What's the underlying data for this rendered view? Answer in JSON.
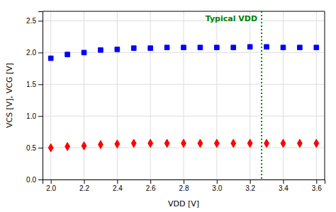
{
  "chart_data": {
    "type": "scatter",
    "xlabel": "VDD [V]",
    "ylabel": "VCS [V], VCG [V]",
    "x": [
      2.0,
      2.1,
      2.2,
      2.3,
      2.4,
      2.5,
      2.6,
      2.7,
      2.8,
      2.9,
      3.0,
      3.1,
      3.2,
      3.3,
      3.4,
      3.5,
      3.6
    ],
    "series": [
      {
        "color": "#0000FF",
        "marker": "square",
        "values": [
          1.91,
          1.97,
          2.0,
          2.04,
          2.05,
          2.07,
          2.07,
          2.08,
          2.08,
          2.08,
          2.08,
          2.08,
          2.09,
          2.09,
          2.08,
          2.08,
          2.08
        ]
      },
      {
        "color": "#FF0000",
        "marker": "diamond",
        "values": [
          0.5,
          0.52,
          0.53,
          0.55,
          0.56,
          0.57,
          0.57,
          0.57,
          0.57,
          0.57,
          0.57,
          0.57,
          0.57,
          0.57,
          0.57,
          0.57,
          0.57
        ]
      }
    ],
    "vline": {
      "x": 3.27,
      "label": "Typical VDD",
      "color": "#008000",
      "line_style": "dotted"
    },
    "xlim": [
      1.95,
      3.65
    ],
    "ylim": [
      0,
      2.65
    ],
    "xticks": [
      {
        "value": 2.0,
        "label": "2.0"
      },
      2.2,
      2.4,
      2.6,
      2.8,
      {
        "value": 3.0,
        "label": "3.0"
      },
      3.2,
      3.4,
      3.6
    ],
    "yticks": [
      {
        "value": 0,
        "label": "0.0"
      },
      0.5,
      {
        "value": 1.0,
        "label": "1.0"
      },
      1.5,
      {
        "value": 2.0,
        "label": "2.0"
      },
      2.5
    ],
    "grid": true
  }
}
